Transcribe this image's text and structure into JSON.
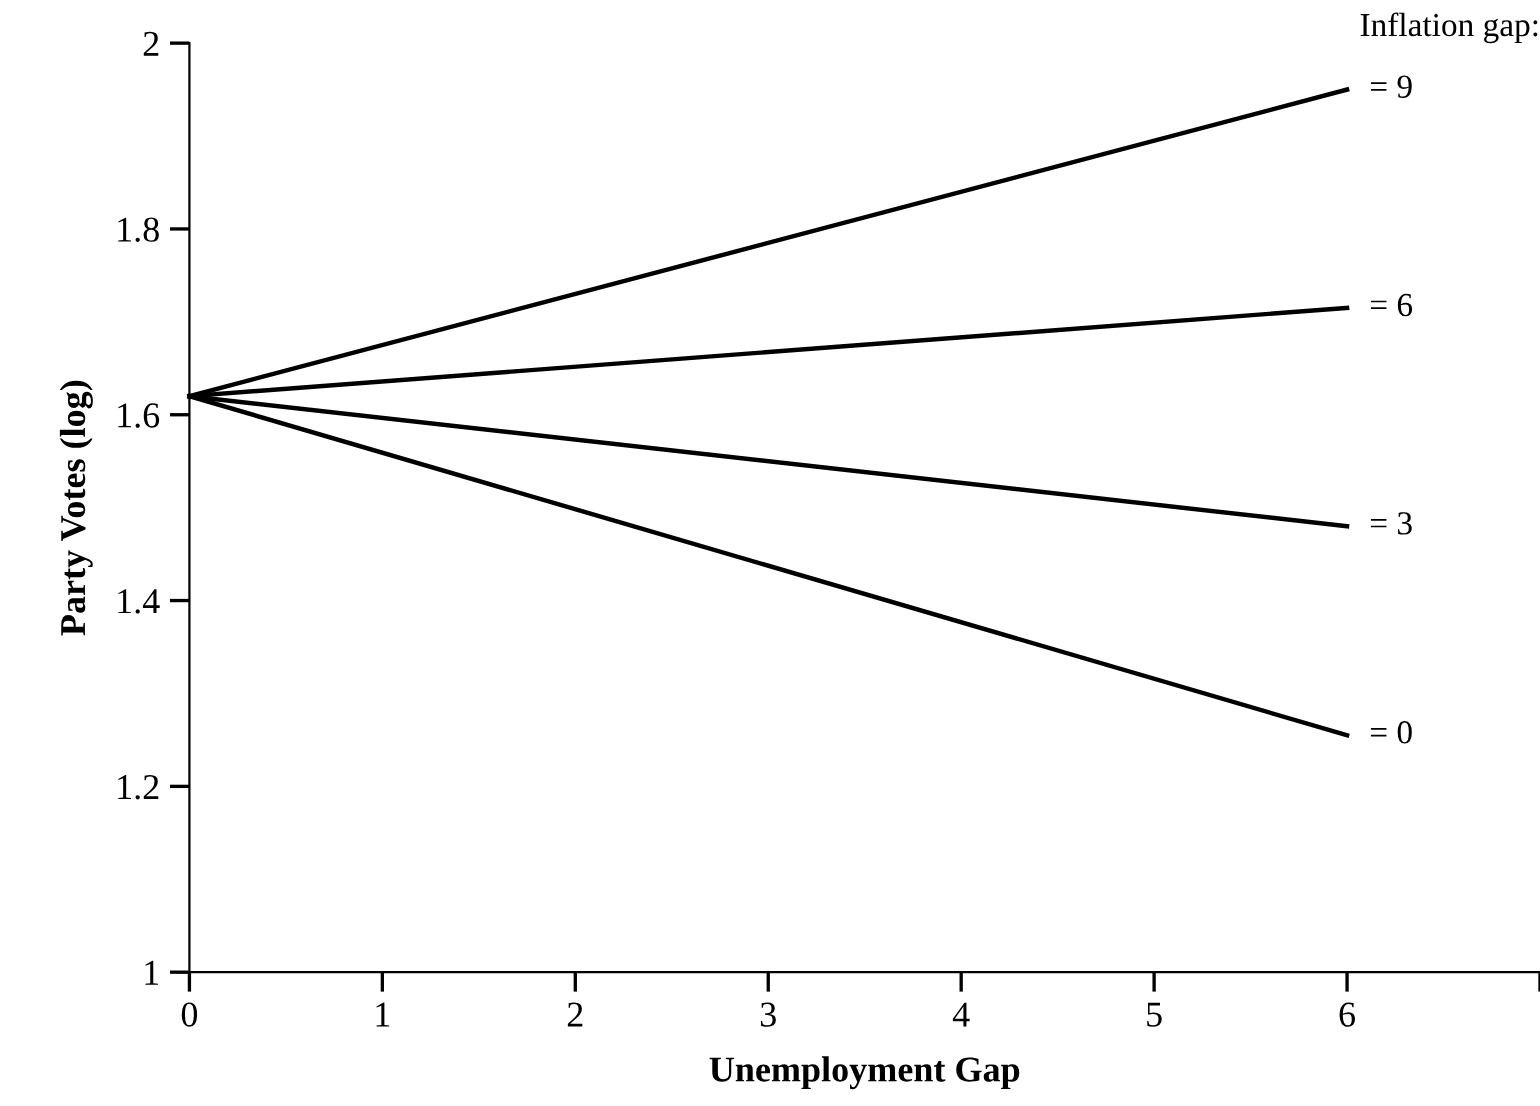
{
  "chart_data": {
    "type": "line",
    "xlabel": "Unemployment Gap",
    "ylabel": "Party Votes (log)",
    "legend_title": "Inflation gap:",
    "x": [
      0,
      6
    ],
    "series": [
      {
        "name": "= 9",
        "color": "#000000",
        "values": [
          1.62,
          1.95
        ]
      },
      {
        "name": "= 6",
        "color": "#000000",
        "values": [
          1.62,
          1.715
        ]
      },
      {
        "name": "= 3",
        "color": "#000000",
        "values": [
          1.62,
          1.48
        ]
      },
      {
        "name": "= 0",
        "color": "#000000",
        "values": [
          1.62,
          1.255
        ]
      }
    ],
    "xlim": [
      0,
      7
    ],
    "xticks": [
      0,
      1,
      2,
      3,
      4,
      5,
      6,
      {
        "value": 7,
        "label": null
      }
    ],
    "ylim": [
      1,
      2
    ],
    "yticks": [
      1,
      1.2,
      1.4,
      1.6,
      1.8,
      2
    ],
    "grid": false,
    "marker": "none",
    "line_style": "solid"
  }
}
